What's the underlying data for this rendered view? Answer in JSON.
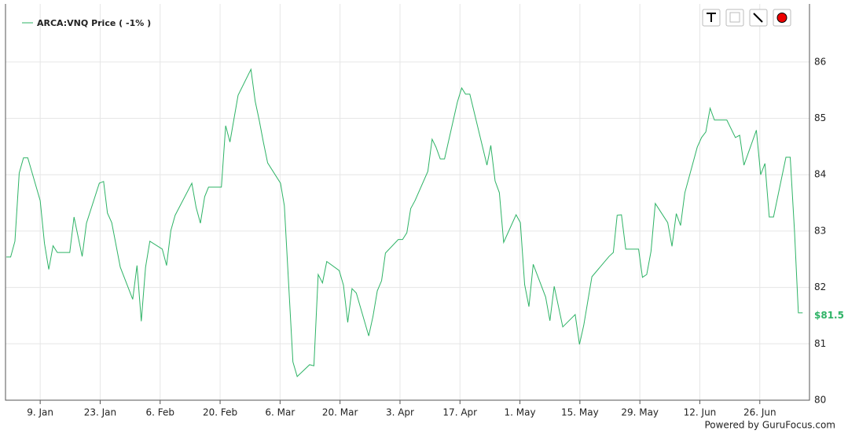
{
  "chart_data": {
    "type": "line",
    "series": [
      {
        "name": "ARCA:VNQ Price ( -1% )",
        "color": "#2eb366",
        "x": [
          1.1,
          2.1,
          3.1,
          4.1,
          5.1,
          6.1,
          9.0,
          10.0,
          11.0,
          12.0,
          13.0,
          15.9,
          16.9,
          18.8,
          19.8,
          22.8,
          23.8,
          24.7,
          25.7,
          27.7,
          30.6,
          31.6,
          32.6,
          33.6,
          34.6,
          37.5,
          38.5,
          39.5,
          40.5,
          44.4,
          45.4,
          46.4,
          47.4,
          48.3,
          51.3,
          52.3,
          53.3,
          55.2,
          58.2,
          59.2,
          60.1,
          61.1,
          62.1,
          65.1,
          66.0,
          68.0,
          69.0,
          71.9,
          72.9,
          73.9,
          74.9,
          75.9,
          78.8,
          79.8,
          80.8,
          81.8,
          82.8,
          85.7,
          86.7,
          87.7,
          88.7,
          89.6,
          92.6,
          93.6,
          94.6,
          95.5,
          96.5,
          99.5,
          100.5,
          101.4,
          102.4,
          103.4,
          106.4,
          107.4,
          108.3,
          109.3,
          113.3,
          114.2,
          115.2,
          116.2,
          117.2,
          120.1,
          121.1,
          122.1,
          123.1,
          124.1,
          127.0,
          128.0,
          129.0,
          131.0,
          133.9,
          134.9,
          135.9,
          137.8,
          141.8,
          142.8,
          143.7,
          144.7,
          145.7,
          148.7,
          149.6,
          150.6,
          151.6,
          152.6,
          155.5,
          156.5,
          157.5,
          158.5,
          159.5,
          162.4,
          163.4,
          164.4,
          165.4,
          166.4,
          169.3,
          171.3,
          172.3,
          173.3,
          176.2,
          177.2,
          178.2,
          179.2,
          180.2,
          183.1,
          184.1,
          185.1,
          186.0,
          187.0
        ],
        "values": [
          82.54,
          82.54,
          82.82,
          84.03,
          84.3,
          84.3,
          83.54,
          82.78,
          82.32,
          82.74,
          82.62,
          82.62,
          83.25,
          82.55,
          83.14,
          83.85,
          83.88,
          83.32,
          83.15,
          82.36,
          81.79,
          82.39,
          81.4,
          82.36,
          82.82,
          82.68,
          82.39,
          83.01,
          83.28,
          83.85,
          83.42,
          83.14,
          83.61,
          83.78,
          83.78,
          84.87,
          84.58,
          85.41,
          85.87,
          85.3,
          84.98,
          84.58,
          84.21,
          83.85,
          83.45,
          80.68,
          80.42,
          80.63,
          80.61,
          82.23,
          82.08,
          82.46,
          82.3,
          82.04,
          81.38,
          81.98,
          81.9,
          81.14,
          81.49,
          81.94,
          82.12,
          82.61,
          82.85,
          82.85,
          82.97,
          83.4,
          83.54,
          84.06,
          84.63,
          84.49,
          84.28,
          84.28,
          85.29,
          85.54,
          85.43,
          85.43,
          84.17,
          84.52,
          83.89,
          83.68,
          82.8,
          83.29,
          83.15,
          82.05,
          81.66,
          82.41,
          81.83,
          81.41,
          82.02,
          81.3,
          81.52,
          80.99,
          81.33,
          82.19,
          82.55,
          82.62,
          83.28,
          83.29,
          82.68,
          82.68,
          82.18,
          82.23,
          82.64,
          83.49,
          83.15,
          82.73,
          83.31,
          83.1,
          83.68,
          84.49,
          84.66,
          84.76,
          85.18,
          84.97,
          84.97,
          84.66,
          84.7,
          84.17,
          84.79,
          84.0,
          84.2,
          83.25,
          83.25,
          84.31,
          84.31,
          83.0,
          81.55,
          81.55
        ]
      }
    ],
    "xlim": [
      0.9,
      188.6
    ],
    "xticks": [
      {
        "value": 9,
        "label": "9. Jan"
      },
      {
        "value": 23,
        "label": "23. Jan"
      },
      {
        "value": 37,
        "label": "6. Feb"
      },
      {
        "value": 51,
        "label": "20. Feb"
      },
      {
        "value": 65,
        "label": "6. Mar"
      },
      {
        "value": 79,
        "label": "20. Mar"
      },
      {
        "value": 93,
        "label": "3. Apr"
      },
      {
        "value": 107,
        "label": "17. Apr"
      },
      {
        "value": 121,
        "label": "1. May"
      },
      {
        "value": 135,
        "label": "15. May"
      },
      {
        "value": 149,
        "label": "29. May"
      },
      {
        "value": 163,
        "label": "12. Jun"
      },
      {
        "value": 177,
        "label": "26. Jun"
      }
    ],
    "ylim": [
      80,
      87.03
    ],
    "yticks": [
      80,
      81,
      82,
      83,
      84,
      85,
      86
    ],
    "grid": true,
    "annotations": [
      {
        "value": 81.5,
        "label": "$81.5"
      }
    ],
    "footer": "Powered by GuruFocus.com"
  }
}
